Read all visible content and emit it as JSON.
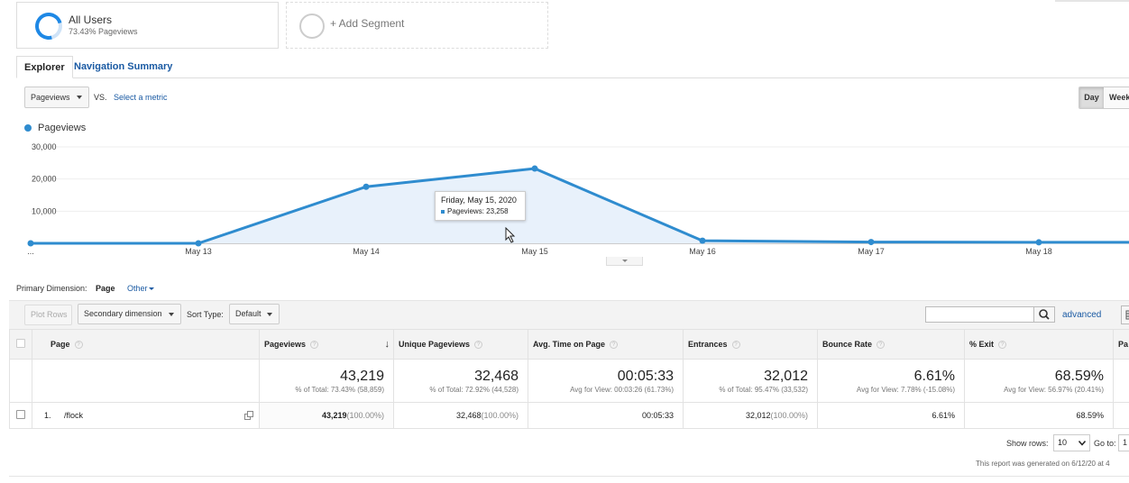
{
  "segments": {
    "all_users": {
      "name": "All Users",
      "sub": "73.43% Pageviews"
    },
    "add_label": "+ Add Segment"
  },
  "tabs": {
    "explorer": "Explorer",
    "navigation_summary": "Navigation Summary"
  },
  "metric": {
    "selected": "Pageviews",
    "vs": "VS.",
    "select_link": "Select a metric"
  },
  "interval": {
    "day": "Day",
    "week": "Week"
  },
  "legend": {
    "label": "Pageviews",
    "color": "#2f8ccf"
  },
  "chart_data": {
    "type": "area",
    "series": [
      {
        "name": "Pageviews",
        "x": [
          "…",
          "May 13",
          "May 14",
          "May 15",
          "May 16",
          "May 17",
          "May 18",
          ""
        ],
        "values": [
          0,
          0,
          17600,
          23258,
          800,
          400,
          300,
          300
        ]
      }
    ],
    "x_ticks": [
      "...",
      "May 13",
      "May 14",
      "May 15",
      "May 16",
      "May 17",
      "May 18"
    ],
    "y_ticks": [
      "30,000",
      "20,000",
      "10,000"
    ],
    "ylim": [
      0,
      30000
    ],
    "grid": true,
    "line_color": "#2f8ccf",
    "fill_color": "#e8f1fb"
  },
  "tooltip": {
    "date": "Friday, May 15, 2020",
    "line": "Pageviews: 23,258"
  },
  "primary_dimension": {
    "label": "Primary Dimension:",
    "page": "Page",
    "other": "Other"
  },
  "toolbar": {
    "plot_rows": "Plot Rows",
    "secondary_dimension": "Secondary dimension",
    "sort_type_label": "Sort Type:",
    "sort_type_value": "Default",
    "advanced": "advanced"
  },
  "table": {
    "columns": [
      "Page",
      "Pageviews",
      "Unique Pageviews",
      "Avg. Time on Page",
      "Entrances",
      "Bounce Rate",
      "% Exit",
      "Pa"
    ],
    "totals": [
      {
        "value": "43,219",
        "sub": "% of Total: 73.43% (58,859)"
      },
      {
        "value": "32,468",
        "sub": "% of Total: 72.92% (44,528)"
      },
      {
        "value": "00:05:33",
        "sub": "Avg for View: 00:03:26 (61.73%)"
      },
      {
        "value": "32,012",
        "sub": "% of Total: 95.47% (33,532)"
      },
      {
        "value": "6.61%",
        "sub": "Avg for View: 7.78% (-15.08%)"
      },
      {
        "value": "68.59%",
        "sub": "Avg for View: 56.97% (20.41%)"
      }
    ],
    "rows": [
      {
        "index": "1.",
        "page": "/flock",
        "pageviews": "43,219",
        "pageviews_pct": "(100.00%)",
        "unique": "32,468",
        "unique_pct": "(100.00%)",
        "avg_time": "00:05:33",
        "entrances": "32,012",
        "entrances_pct": "(100.00%)",
        "bounce": "6.61%",
        "exit": "68.59%"
      }
    ]
  },
  "pagination": {
    "show_rows_label": "Show rows:",
    "show_rows_value": "10",
    "goto_label": "Go to:",
    "goto_value": "1"
  },
  "footer": {
    "generated": "This report was generated on 6/12/20 at 4"
  }
}
